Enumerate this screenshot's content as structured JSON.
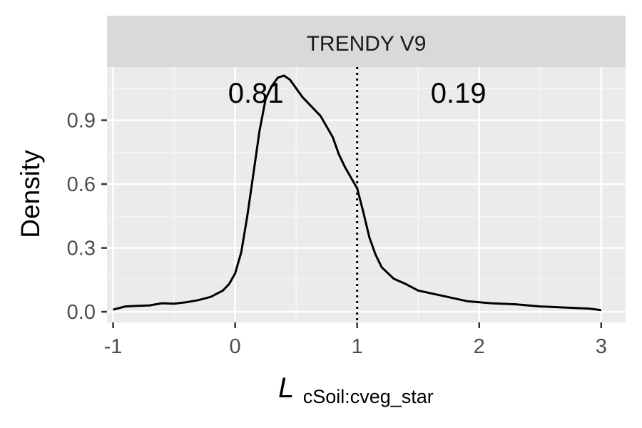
{
  "chart_data": {
    "type": "line",
    "facet_label": "TRENDY V9",
    "xlabel_symbol": "L",
    "xlabel_subscript": "cSoil:cveg_star",
    "ylabel": "Density",
    "xlim": [
      -1.05,
      3.2
    ],
    "ylim": [
      -0.05,
      1.15
    ],
    "x_ticks": [
      -1,
      0,
      1,
      2,
      3
    ],
    "x_tick_labels": [
      "-1",
      "0",
      "1",
      "2",
      "3"
    ],
    "y_ticks": [
      0,
      0.3,
      0.6,
      0.9
    ],
    "y_tick_labels": [
      "0.0",
      "0.3",
      "0.6",
      "0.9"
    ],
    "grid": true,
    "vline": {
      "x": 1,
      "style": "dotted"
    },
    "annotations": [
      {
        "text": "0.81",
        "x": 0.17,
        "y": 1.03
      },
      {
        "text": "0.19",
        "x": 1.83,
        "y": 1.03
      }
    ],
    "series": [
      {
        "x": [
          -1.0,
          -0.9,
          -0.8,
          -0.7,
          -0.6,
          -0.5,
          -0.4,
          -0.3,
          -0.2,
          -0.1,
          -0.05,
          0.0,
          0.05,
          0.1,
          0.15,
          0.2,
          0.25,
          0.3,
          0.35,
          0.4,
          0.45,
          0.5,
          0.55,
          0.6,
          0.7,
          0.8,
          0.85,
          0.9,
          0.95,
          1.0,
          1.05,
          1.1,
          1.15,
          1.2,
          1.3,
          1.4,
          1.5,
          1.7,
          1.9,
          2.1,
          2.3,
          2.5,
          2.7,
          2.9,
          3.0
        ],
        "y": [
          0.01,
          0.025,
          0.028,
          0.03,
          0.04,
          0.038,
          0.045,
          0.055,
          0.07,
          0.1,
          0.13,
          0.18,
          0.28,
          0.45,
          0.65,
          0.85,
          1.0,
          1.06,
          1.1,
          1.11,
          1.09,
          1.05,
          1.01,
          0.98,
          0.92,
          0.82,
          0.74,
          0.68,
          0.63,
          0.58,
          0.47,
          0.35,
          0.27,
          0.21,
          0.155,
          0.13,
          0.1,
          0.075,
          0.05,
          0.04,
          0.035,
          0.025,
          0.02,
          0.015,
          0.008
        ]
      }
    ]
  }
}
